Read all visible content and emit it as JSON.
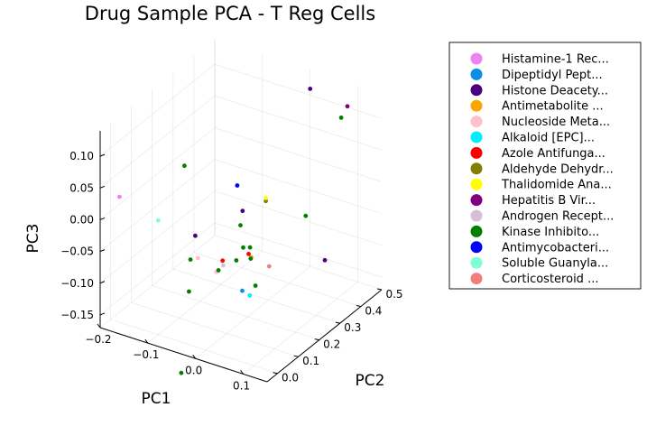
{
  "chart_data": {
    "type": "scatter3d",
    "title": "Drug Sample PCA - T Reg Cells",
    "xlabel": "PC1",
    "ylabel": "PC2",
    "zlabel": "PC3",
    "xlim": [
      -0.2,
      0.15
    ],
    "ylim": [
      -0.05,
      0.5
    ],
    "zlim": [
      -0.17,
      0.14
    ],
    "xticks": [
      -0.2,
      -0.1,
      0.0,
      0.1
    ],
    "yticks": [
      0.0,
      0.1,
      0.2,
      0.3,
      0.4,
      0.5
    ],
    "zticks": [
      -0.15,
      -0.1,
      -0.05,
      0.0,
      0.05,
      0.1
    ],
    "xtick_labels": [
      "−0.2",
      "−0.1",
      "0.0",
      "0.1"
    ],
    "ytick_labels": [
      "0.0",
      "0.1",
      "0.2",
      "0.3",
      "0.4",
      "0.5"
    ],
    "ztick_labels": [
      "−0.15",
      "−0.10",
      "−0.05",
      "0.00",
      "0.05",
      "0.10"
    ],
    "grid": true,
    "legend_position": "outer-right",
    "series": [
      {
        "name": "Histamine-1 Rec...",
        "color": "#ee82ee",
        "points": [
          [
            -0.19,
            0.02,
            0.02
          ]
        ]
      },
      {
        "name": "Dipeptidyl Pept...",
        "color": "#0a8ee0",
        "points": [
          [
            0.05,
            0.06,
            -0.08
          ]
        ]
      },
      {
        "name": "Histone Deacety...",
        "color": "#4b0082",
        "points": [
          [
            0.02,
            0.13,
            0.02
          ],
          [
            -0.04,
            0.04,
            -0.01
          ],
          [
            0.14,
            0.25,
            -0.06
          ],
          [
            0.0,
            0.5,
            0.11
          ]
        ]
      },
      {
        "name": "Antimetabolite ...",
        "color": "#ffa500",
        "points": [
          [
            0.06,
            0.08,
            -0.03
          ]
        ]
      },
      {
        "name": "Nucleoside Meta...",
        "color": "#ffc0cb",
        "points": [
          [
            -0.03,
            0.03,
            -0.04
          ],
          [
            0.0,
            0.05,
            -0.06
          ]
        ]
      },
      {
        "name": "Alkaloid [EPC]...",
        "color": "#00f0ff",
        "points": [
          [
            0.07,
            0.05,
            -0.08
          ]
        ]
      },
      {
        "name": "Azole Antifunga...",
        "color": "#ff0000",
        "points": [
          [
            0.0,
            0.08,
            -0.05
          ],
          [
            0.05,
            0.09,
            -0.03
          ]
        ]
      },
      {
        "name": "Aldehyde Dehydr...",
        "color": "#808000",
        "points": [
          [
            0.06,
            0.15,
            0.04
          ]
        ]
      },
      {
        "name": "Thalidomide Ana...",
        "color": "#ffff00",
        "points": [
          [
            0.06,
            0.15,
            0.045
          ]
        ]
      },
      {
        "name": "Hepatitis B Vir...",
        "color": "#800080",
        "points": [
          [
            0.1,
            0.45,
            0.12
          ]
        ]
      },
      {
        "name": "Androgen Recept...",
        "color": "#d8bfd8",
        "points": [
          [
            0.01,
            0.06,
            -0.05
          ]
        ]
      },
      {
        "name": "Kinase Inhibito...",
        "color": "#008000",
        "points": [
          [
            -0.08,
            0.08,
            0.08
          ],
          [
            -0.05,
            0.04,
            -0.05
          ],
          [
            0.0,
            0.06,
            -0.06
          ],
          [
            0.02,
            0.1,
            -0.05
          ],
          [
            0.03,
            0.11,
            -0.03
          ],
          [
            0.05,
            0.1,
            -0.04
          ],
          [
            0.04,
            0.12,
            -0.03
          ],
          [
            0.06,
            0.1,
            -0.08
          ],
          [
            0.1,
            0.25,
            0.0
          ],
          [
            0.1,
            0.42,
            0.11
          ],
          [
            -0.04,
            0.01,
            -0.09
          ],
          [
            0.02,
            0.12,
            0.0
          ],
          [
            -0.03,
            -0.05,
            -0.2
          ]
        ]
      },
      {
        "name": "Antimycobacteri...",
        "color": "#0000ff",
        "points": [
          [
            0.0,
            0.15,
            0.05
          ]
        ]
      },
      {
        "name": "Soluble Guanyla...",
        "color": "#7fffd4",
        "points": [
          [
            -0.1,
            0.0,
            0.01
          ]
        ]
      },
      {
        "name": "Corticosteroid ...",
        "color": "#f08080",
        "points": [
          [
            0.08,
            0.12,
            -0.05
          ]
        ]
      }
    ]
  }
}
